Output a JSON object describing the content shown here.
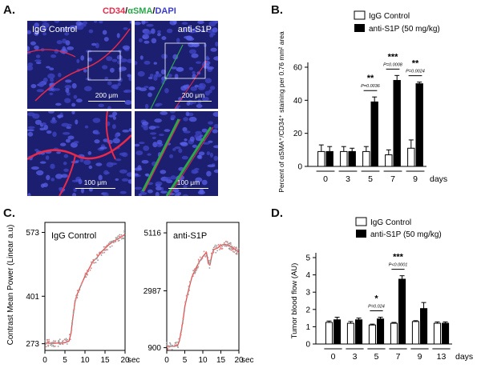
{
  "panels": {
    "a": {
      "letter": "A.",
      "stain": {
        "cd34": "CD34",
        "sep1": "/",
        "asma": "αSMA",
        "sep2": "/",
        "dapi": "DAPI"
      },
      "images": [
        {
          "label": "IgG Control",
          "scale": "200 μm"
        },
        {
          "label": "anti-S1P",
          "scale": "200 μm"
        },
        {
          "label": "",
          "scale": "100 μm"
        },
        {
          "label": "",
          "scale": "100 μm"
        }
      ],
      "colors": {
        "cd34": "#e8294a",
        "asma": "#2aa84a",
        "dapi": "#3b3bd0",
        "background": "#1c1f70"
      }
    },
    "c": {
      "letter": "C.",
      "ylabel": "Contrast Mean Power (Linear a.u)"
    }
  },
  "legend_b": {
    "control": "IgG Control",
    "treated": "anti-S1P (50 mg/kg)"
  },
  "legend_d": {
    "control": "IgG Control",
    "treated": "anti-S1P (50 mg/kg)"
  },
  "chart_data": [
    {
      "id": "B",
      "panel_label": "B.",
      "type": "bar",
      "ylabel": "Percent of αSMA⁺/CD34⁺ staining per 0.76 mm² area",
      "ylim": [
        0,
        60
      ],
      "yticks": [
        0,
        20,
        40,
        60
      ],
      "categories": [
        "0",
        "3",
        "5",
        "7",
        "9"
      ],
      "x_unit": "days",
      "series": [
        {
          "name": "IgG Control",
          "color": "#ffffff",
          "values": [
            9,
            9,
            9,
            7,
            11
          ],
          "errors": [
            4,
            3,
            3,
            3,
            5
          ]
        },
        {
          "name": "anti-S1P (50 mg/kg)",
          "color": "#000000",
          "values": [
            9,
            9,
            39,
            52,
            50
          ],
          "errors": [
            3,
            2,
            3,
            3,
            1
          ]
        }
      ],
      "annotations": [
        {
          "category": "5",
          "stars": "**",
          "p": "P=0.0036"
        },
        {
          "category": "7",
          "stars": "***",
          "p": "P=0.0008"
        },
        {
          "category": "9",
          "stars": "**",
          "p": "P=0.0024"
        }
      ]
    },
    {
      "id": "C-left",
      "type": "scatter",
      "title": "IgG Control",
      "xlim": [
        0,
        20
      ],
      "xticks": [
        0,
        5,
        10,
        15,
        20
      ],
      "x_unit": "sec",
      "ylim": [
        255,
        600
      ],
      "yticks": [
        273,
        401,
        573
      ],
      "curve": {
        "x": [
          0,
          2,
          4,
          5,
          6,
          6.5,
          7,
          7.5,
          8,
          9,
          10,
          11,
          12,
          13,
          14,
          15,
          16,
          17,
          18,
          19,
          20
        ],
        "y": [
          275,
          274,
          275,
          276,
          280,
          300,
          345,
          385,
          405,
          430,
          455,
          475,
          495,
          505,
          520,
          530,
          540,
          548,
          555,
          560,
          568
        ]
      }
    },
    {
      "id": "C-right",
      "type": "scatter",
      "title": "anti-S1P",
      "xlim": [
        0,
        20
      ],
      "xticks": [
        0,
        5,
        10,
        15,
        20
      ],
      "x_unit": "sec",
      "ylim": [
        800,
        5500
      ],
      "yticks": [
        900,
        2987,
        5116
      ],
      "curve": {
        "x": [
          0,
          2,
          3,
          3.5,
          4,
          4.5,
          5,
          6,
          7,
          8,
          9,
          10,
          11,
          11.5,
          12,
          12.5,
          13,
          14,
          15,
          16,
          17,
          18,
          19,
          20
        ],
        "y": [
          950,
          950,
          980,
          1150,
          1500,
          1900,
          2400,
          3000,
          3500,
          3800,
          4050,
          4250,
          4400,
          4000,
          3950,
          4300,
          4500,
          4550,
          4650,
          4700,
          4650,
          4600,
          4500,
          4400
        ]
      }
    },
    {
      "id": "D",
      "panel_label": "D.",
      "type": "bar",
      "ylabel": "Tumor blood flow (AU)",
      "ylim": [
        0,
        5
      ],
      "yticks": [
        0,
        1,
        2,
        3,
        4,
        5
      ],
      "categories": [
        "0",
        "3",
        "5",
        "7",
        "9",
        "13"
      ],
      "x_unit": "days",
      "series": [
        {
          "name": "IgG Control",
          "color": "#ffffff",
          "values": [
            1.25,
            1.2,
            1.1,
            1.2,
            1.3,
            1.2
          ],
          "errors": [
            0.08,
            0.1,
            0.05,
            0.05,
            0.05,
            0.08
          ]
        },
        {
          "name": "anti-S1P (50 mg/kg)",
          "color": "#000000",
          "values": [
            1.4,
            1.4,
            1.45,
            3.75,
            2.05,
            1.2
          ],
          "errors": [
            0.15,
            0.1,
            0.1,
            0.2,
            0.35,
            0.08
          ]
        }
      ],
      "annotations": [
        {
          "category": "5",
          "stars": "*",
          "p": "P=0.024"
        },
        {
          "category": "7",
          "stars": "***",
          "p": "P<0.0001"
        }
      ]
    }
  ]
}
